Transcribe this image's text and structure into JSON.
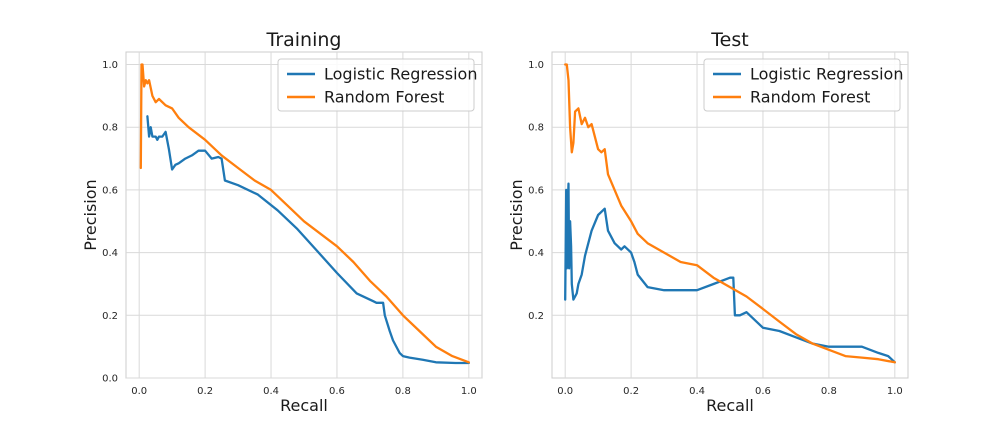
{
  "chart_data": [
    {
      "type": "line",
      "title": "Training",
      "xlabel": "Recall",
      "ylabel": "Precision",
      "xlim": [
        -0.04,
        1.04
      ],
      "ylim": [
        0.0,
        1.04
      ],
      "xticks": [
        0.0,
        0.2,
        0.4,
        0.6,
        0.8,
        1.0
      ],
      "xtick_labels": [
        "0.0",
        "0.2",
        "0.4",
        "0.6",
        "0.8",
        "1.0"
      ],
      "yticks": [
        0.0,
        0.2,
        0.4,
        0.6,
        0.8,
        1.0
      ],
      "ytick_labels": [
        "0.0",
        "0.2",
        "0.4",
        "0.6",
        "0.8",
        "1.0"
      ],
      "grid": true,
      "legend_position": "top-right",
      "series": [
        {
          "name": "Logistic Regression",
          "color": "#1f77b4",
          "x": [
            0.025,
            0.03,
            0.035,
            0.04,
            0.05,
            0.055,
            0.06,
            0.07,
            0.08,
            0.09,
            0.1,
            0.11,
            0.12,
            0.14,
            0.16,
            0.18,
            0.2,
            0.22,
            0.24,
            0.25,
            0.26,
            0.3,
            0.36,
            0.42,
            0.48,
            0.54,
            0.6,
            0.66,
            0.71,
            0.72,
            0.74,
            0.745,
            0.76,
            0.77,
            0.79,
            0.8,
            0.82,
            0.86,
            0.9,
            0.96,
            1.0
          ],
          "y": [
            0.835,
            0.77,
            0.8,
            0.77,
            0.77,
            0.76,
            0.77,
            0.77,
            0.785,
            0.73,
            0.665,
            0.68,
            0.685,
            0.7,
            0.71,
            0.725,
            0.725,
            0.7,
            0.705,
            0.7,
            0.63,
            0.615,
            0.585,
            0.535,
            0.475,
            0.405,
            0.335,
            0.27,
            0.245,
            0.24,
            0.24,
            0.2,
            0.15,
            0.12,
            0.08,
            0.07,
            0.065,
            0.058,
            0.05,
            0.048,
            0.048
          ]
        },
        {
          "name": "Random Forest",
          "color": "#ff7f0e",
          "x": [
            0.005,
            0.007,
            0.01,
            0.015,
            0.02,
            0.025,
            0.03,
            0.04,
            0.05,
            0.06,
            0.08,
            0.1,
            0.12,
            0.15,
            0.2,
            0.25,
            0.3,
            0.35,
            0.4,
            0.45,
            0.5,
            0.55,
            0.6,
            0.65,
            0.7,
            0.75,
            0.8,
            0.85,
            0.9,
            0.95,
            1.0
          ],
          "y": [
            0.67,
            1.0,
            1.0,
            0.93,
            0.95,
            0.94,
            0.95,
            0.9,
            0.88,
            0.89,
            0.87,
            0.86,
            0.83,
            0.8,
            0.76,
            0.71,
            0.67,
            0.63,
            0.6,
            0.55,
            0.5,
            0.46,
            0.42,
            0.37,
            0.31,
            0.26,
            0.2,
            0.15,
            0.1,
            0.07,
            0.05
          ]
        }
      ]
    },
    {
      "type": "line",
      "title": "Test",
      "xlabel": "Recall",
      "ylabel": "Precision",
      "xlim": [
        -0.04,
        1.04
      ],
      "ylim": [
        0.0,
        1.04
      ],
      "xticks": [
        0.0,
        0.2,
        0.4,
        0.6,
        0.8,
        1.0
      ],
      "xtick_labels": [
        "0.0",
        "0.2",
        "0.4",
        "0.6",
        "0.8",
        "1.0"
      ],
      "yticks": [
        0.2,
        0.4,
        0.6,
        0.8,
        1.0
      ],
      "ytick_labels": [
        "0.2",
        "0.4",
        "0.6",
        "0.8",
        "1.0"
      ],
      "grid": true,
      "legend_position": "top-right",
      "series": [
        {
          "name": "Logistic Regression",
          "color": "#1f77b4",
          "x": [
            0.0,
            0.003,
            0.005,
            0.008,
            0.01,
            0.012,
            0.015,
            0.018,
            0.02,
            0.025,
            0.03,
            0.035,
            0.04,
            0.05,
            0.06,
            0.08,
            0.1,
            0.12,
            0.13,
            0.15,
            0.17,
            0.18,
            0.2,
            0.21,
            0.22,
            0.25,
            0.3,
            0.35,
            0.4,
            0.45,
            0.5,
            0.51,
            0.515,
            0.53,
            0.55,
            0.6,
            0.65,
            0.7,
            0.75,
            0.8,
            0.85,
            0.9,
            0.95,
            0.98,
            1.0
          ],
          "y": [
            0.25,
            0.6,
            0.35,
            0.55,
            0.62,
            0.35,
            0.5,
            0.42,
            0.3,
            0.25,
            0.26,
            0.27,
            0.3,
            0.33,
            0.39,
            0.47,
            0.52,
            0.54,
            0.47,
            0.43,
            0.41,
            0.42,
            0.4,
            0.37,
            0.33,
            0.29,
            0.28,
            0.28,
            0.28,
            0.3,
            0.32,
            0.32,
            0.2,
            0.2,
            0.21,
            0.16,
            0.15,
            0.13,
            0.11,
            0.1,
            0.1,
            0.1,
            0.08,
            0.07,
            0.05
          ]
        },
        {
          "name": "Random Forest",
          "color": "#ff7f0e",
          "x": [
            0.0,
            0.005,
            0.01,
            0.015,
            0.02,
            0.025,
            0.03,
            0.04,
            0.05,
            0.06,
            0.07,
            0.08,
            0.1,
            0.11,
            0.12,
            0.13,
            0.15,
            0.17,
            0.2,
            0.22,
            0.25,
            0.3,
            0.35,
            0.4,
            0.45,
            0.5,
            0.55,
            0.6,
            0.65,
            0.7,
            0.75,
            0.8,
            0.85,
            0.9,
            0.95,
            1.0
          ],
          "y": [
            1.0,
            1.0,
            0.95,
            0.8,
            0.72,
            0.75,
            0.85,
            0.86,
            0.81,
            0.83,
            0.8,
            0.81,
            0.73,
            0.72,
            0.73,
            0.65,
            0.6,
            0.55,
            0.5,
            0.46,
            0.43,
            0.4,
            0.37,
            0.36,
            0.32,
            0.29,
            0.26,
            0.22,
            0.18,
            0.14,
            0.11,
            0.09,
            0.07,
            0.065,
            0.06,
            0.05
          ]
        }
      ]
    }
  ]
}
